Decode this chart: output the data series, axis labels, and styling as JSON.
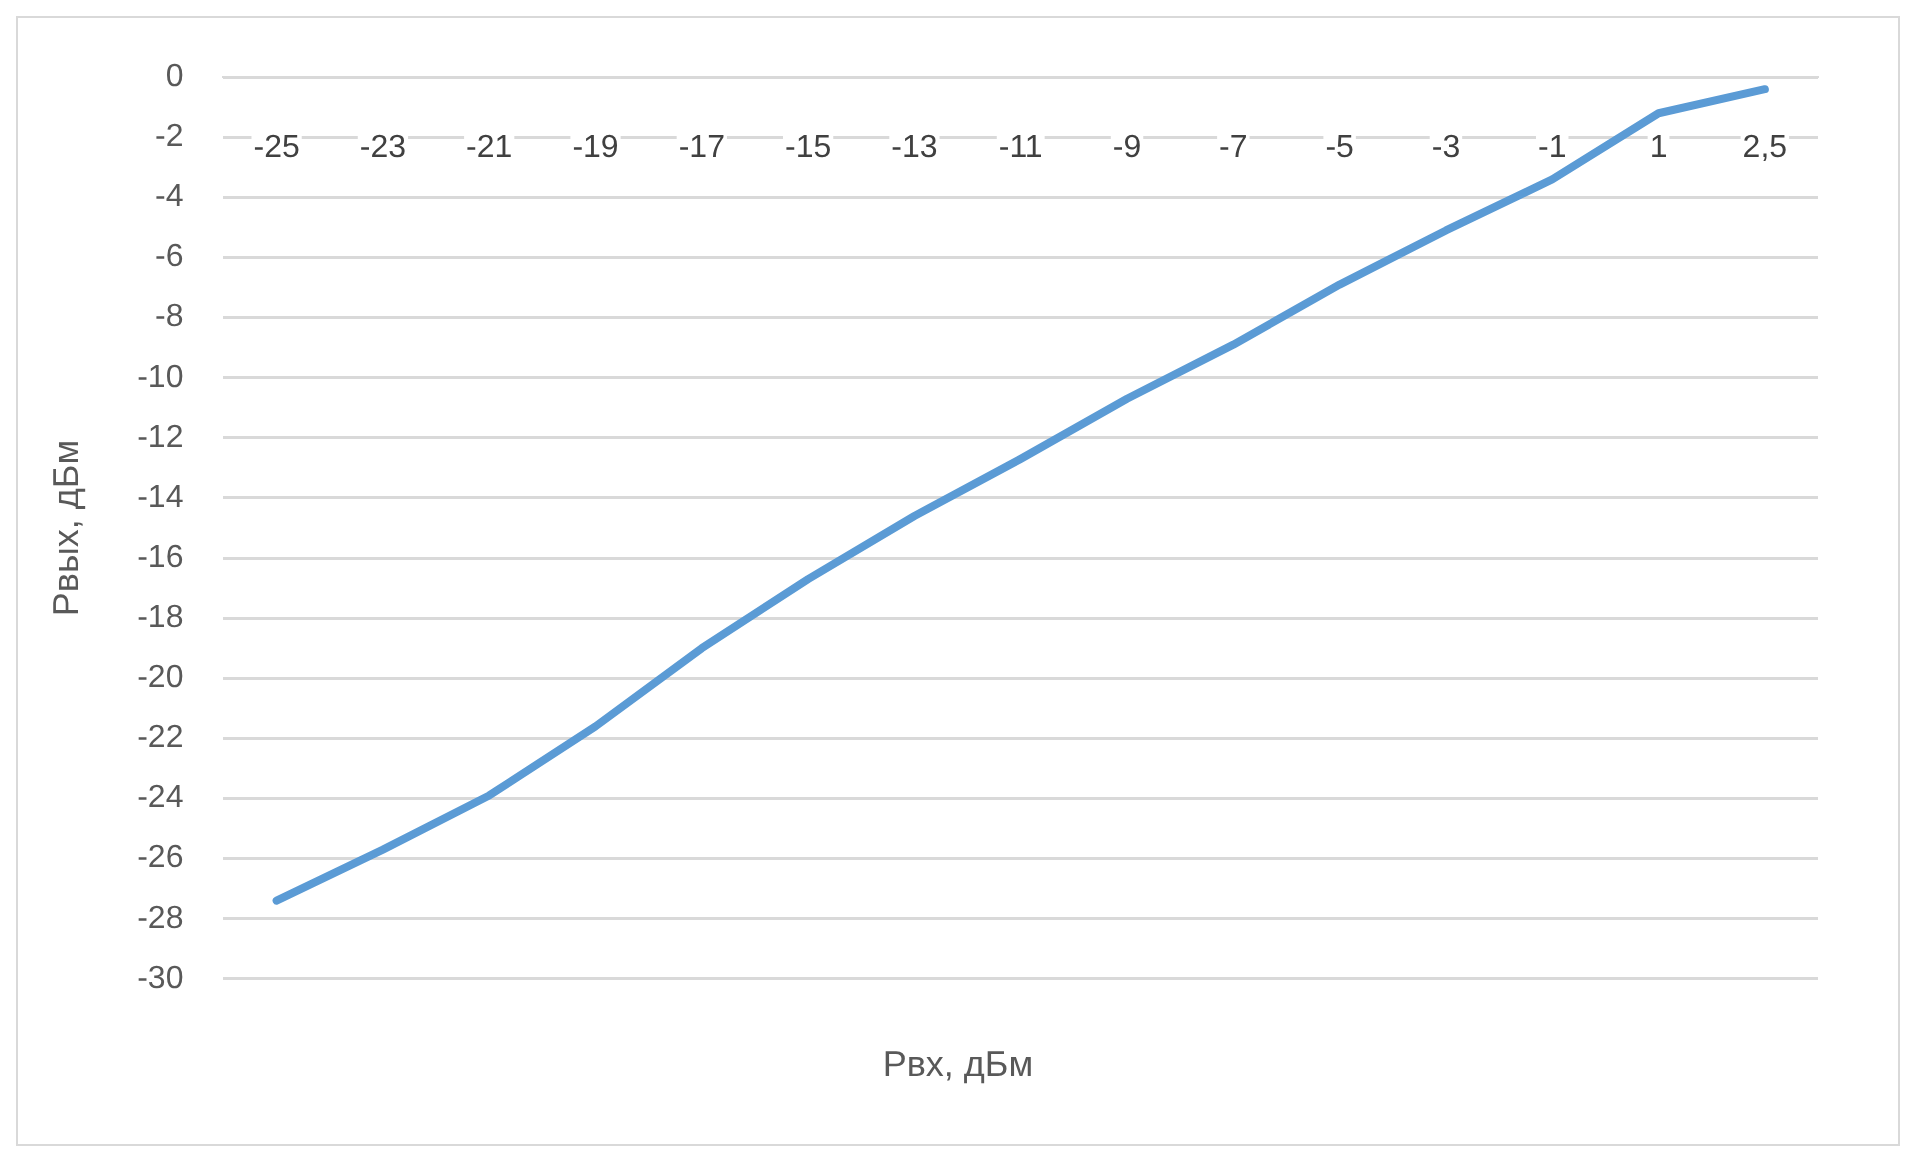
{
  "chart_data": {
    "type": "line",
    "xlabel": "Рвх, дБм",
    "ylabel": "Рвых, дБм",
    "categories": [
      "-25",
      "-23",
      "-21",
      "-19",
      "-17",
      "-15",
      "-13",
      "-11",
      "-9",
      "-7",
      "-5",
      "-3",
      "-1",
      "1",
      "2,5"
    ],
    "series": [
      {
        "color": "#5b9bd5",
        "values": [
          -27.4,
          -25.7,
          -23.9,
          -21.6,
          -19.0,
          -16.7,
          -14.6,
          -12.7,
          -10.7,
          -8.9,
          -6.9,
          -5.1,
          -3.4,
          -1.2,
          -0.4
        ]
      }
    ],
    "ylim": [
      -30,
      0
    ],
    "yticks": [
      0,
      -2,
      -4,
      -6,
      -8,
      -10,
      -12,
      -14,
      -16,
      -18,
      -20,
      -22,
      -24,
      -26,
      -28,
      -30
    ],
    "grid": "y",
    "legend": false,
    "marker": "none",
    "line_style": "solid"
  }
}
